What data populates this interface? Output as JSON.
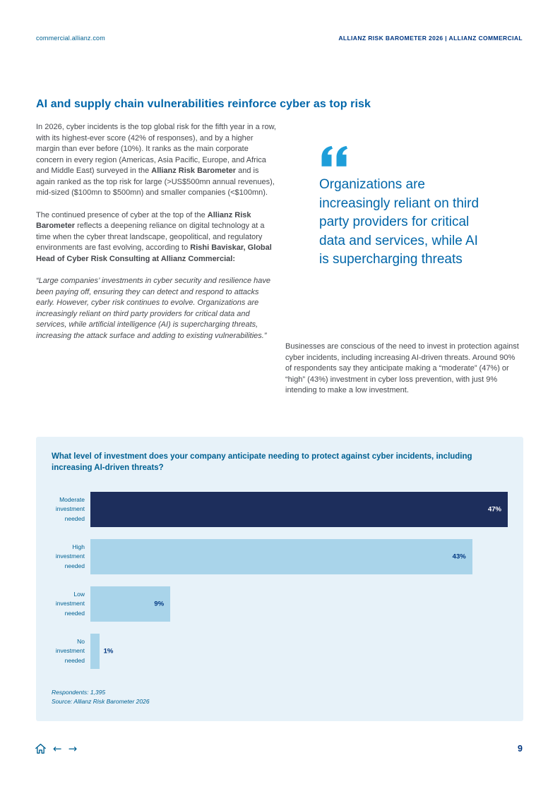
{
  "header": {
    "site_link": "commercial.allianz.com",
    "doc_ref": "ALLIANZ RISK BAROMETER 2026 | ALLIANZ COMMERCIAL"
  },
  "article": {
    "title": "AI and supply chain vulnerabilities reinforce cyber as top risk",
    "p1": {
      "segments": [
        {
          "text": "In 2026, cyber incidents is the top global risk for the fifth year in a row, with its highest-ever score (42% of responses), and by a higher margin than ever before (10%). It ranks as the main corporate concern in every region (Americas, Asia Pacific, Europe, and Africa and Middle East) surveyed in the ",
          "bold": false
        },
        {
          "text": "Allianz Risk Barometer",
          "bold": true
        },
        {
          "text": " and is again ranked as the top risk for large (>US$500mn annual revenues), mid-sized ($100mn to $500mn) and smaller companies (<$100mn).",
          "bold": false
        }
      ]
    },
    "p2": {
      "segments": [
        {
          "text": "The continued presence of cyber at the top of the ",
          "bold": false
        },
        {
          "text": "Allianz Risk Barometer",
          "bold": true
        },
        {
          "text": " reflects a deepening reliance on digital technology at a time when the cyber threat landscape, geopolitical, and regulatory environments are fast evolving, according to ",
          "bold": false
        },
        {
          "text": "Rishi Baviskar, Global Head of Cyber Risk Consulting at Allianz Commercial:",
          "bold": true
        }
      ]
    },
    "quote_paragraph": "“Large companies’ investments in cyber security and resilience have been paying off, ensuring they can detect and respond to attacks early. However, cyber risk continues to evolve. Organizations are increasingly reliant on third party providers for critical data and services, while artificial intelligence (AI) is supercharging threats, increasing the attack surface and adding to existing vulnerabilities.”",
    "pull_quote": "Organizations are increasingly reliant on third party providers for critical data and services, while AI is supercharging threats",
    "p3": "Businesses are conscious of the need to invest in protection against cyber incidents, including increasing AI-driven threats. Around 90% of respondents say they anticipate making a “moderate” (47%) or “high” (43%) investment in cyber loss prevention, with just 9% intending to make a low investment."
  },
  "chart_box": {
    "question": "What level of investment does your company anticipate needing to protect against cyber incidents, including increasing AI-driven threats?",
    "respondents": "Respondents: 1,395",
    "source": "Source: Allianz Risk Barometer 2026"
  },
  "chart_data": {
    "type": "bar",
    "orientation": "horizontal",
    "title": "What level of investment does your company anticipate needing to protect against cyber incidents, including increasing AI-driven threats?",
    "categories": [
      "Moderate investment needed",
      "High investment needed",
      "Low investment needed",
      "No investment needed"
    ],
    "values": [
      47,
      43,
      9,
      1
    ],
    "value_labels": [
      "47%",
      "43%",
      "9%",
      "1%"
    ],
    "xlim": [
      0,
      47
    ],
    "grid": false,
    "legend": false,
    "bar_colors": [
      "#1d2e5c",
      "#a9d4ea",
      "#a9d4ea",
      "#a9d4ea"
    ],
    "value_label_colors": [
      "#ffffff",
      "#003781",
      "#003781",
      "#003781"
    ],
    "label_inside": [
      true,
      true,
      true,
      false
    ]
  },
  "footer": {
    "page_number": "9",
    "icons": [
      {
        "name": "home-icon"
      },
      {
        "name": "arrow-left-icon",
        "glyph": "←"
      },
      {
        "name": "arrow-right-icon",
        "glyph": "→"
      }
    ]
  },
  "colors": {
    "navy": "#003781",
    "blue": "#006192",
    "heading_blue": "#0066a9",
    "quote_icon_blue": "#1e9ed9",
    "panel_bg": "#e7f2f9",
    "bar_dark": "#1d2e5c",
    "bar_light": "#a9d4ea",
    "body_text": "#44474c"
  }
}
